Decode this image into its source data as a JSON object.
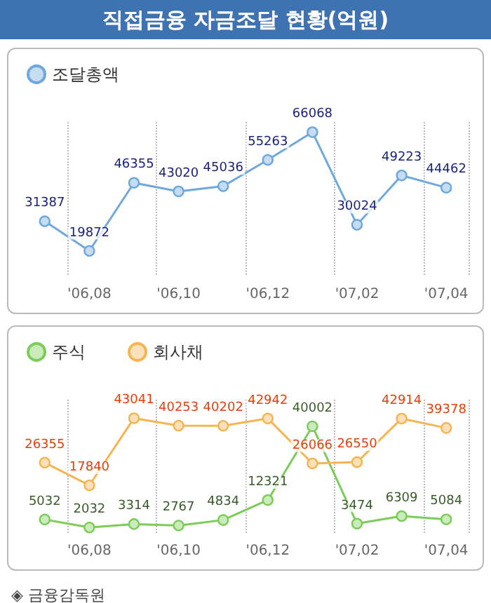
{
  "chart_data": [
    {
      "type": "line",
      "title": "직접금융 자금조달 현황(억원)",
      "categories": [
        null,
        "'06,08",
        null,
        "'06,10",
        null,
        "'06,12",
        null,
        "'07,02",
        null,
        "'07,04"
      ],
      "series": [
        {
          "name": "조달총액",
          "color": "#6fa8dc",
          "values": [
            31387,
            19872,
            46355,
            43020,
            45036,
            55263,
            66068,
            30024,
            49223,
            44462
          ]
        }
      ],
      "data_labels": true,
      "grid": "x",
      "legend": "top left",
      "marker": "circle",
      "line_style": "solid"
    },
    {
      "type": "line",
      "categories": [
        null,
        "'06,08",
        null,
        "'06,10",
        null,
        "'06,12",
        null,
        "'07,02",
        null,
        "'07,04"
      ],
      "series": [
        {
          "name": "주식",
          "color": "#7ccc5a",
          "values": [
            5032,
            2032,
            3314,
            2767,
            4834,
            12321,
            40002,
            3474,
            6309,
            5084
          ]
        },
        {
          "name": "회사채",
          "color": "#f5b553",
          "values": [
            26355,
            17840,
            43041,
            40253,
            40202,
            42942,
            26066,
            26550,
            42914,
            39378
          ]
        }
      ],
      "data_labels": true,
      "grid": "x",
      "legend": "top left",
      "marker": "circle",
      "line_style": "solid",
      "annotations": [
        "◈ 금융감독원"
      ]
    }
  ]
}
